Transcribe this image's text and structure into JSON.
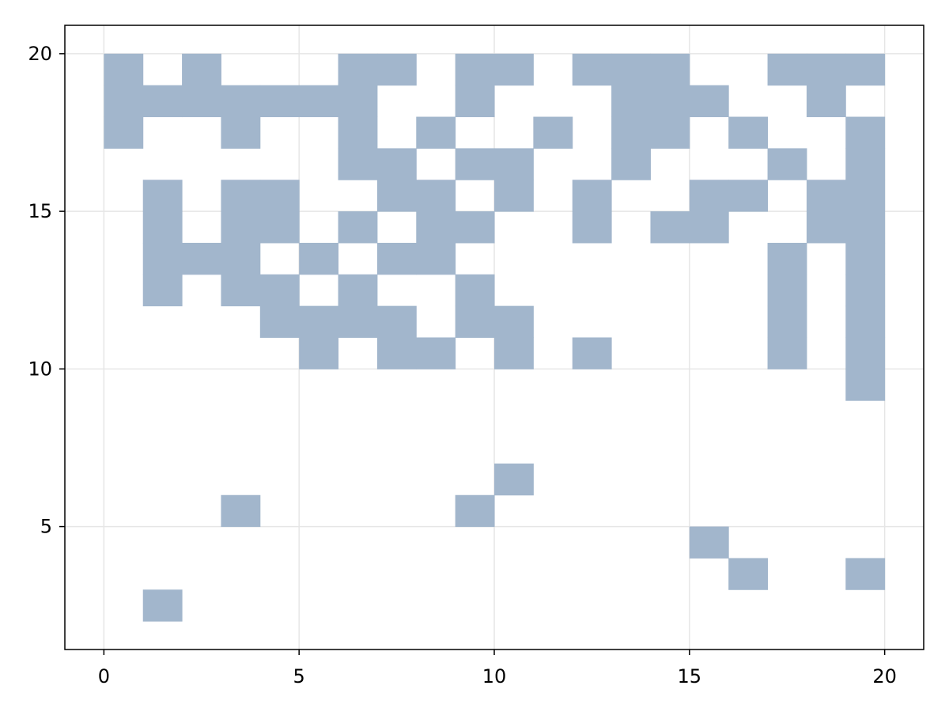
{
  "chart_data": {
    "type": "heatmap",
    "title": "",
    "xlabel": "",
    "ylabel": "",
    "xlim": [
      -1,
      21
    ],
    "ylim": [
      1.1,
      20.9
    ],
    "grid": true,
    "xticks": [
      0,
      5,
      10,
      15,
      20
    ],
    "yticks": [
      5,
      10,
      15,
      20
    ],
    "xtick_labels": [
      "0",
      "5",
      "10",
      "15",
      "20"
    ],
    "ytick_labels": [
      "5",
      "10",
      "15",
      "20"
    ],
    "cell_color": "#a2b6cc",
    "grid_color": "#e6e6e6",
    "cells": [
      [
        0,
        20
      ],
      [
        2,
        20
      ],
      [
        6,
        20
      ],
      [
        7,
        20
      ],
      [
        9,
        20
      ],
      [
        10,
        20
      ],
      [
        12,
        20
      ],
      [
        13,
        20
      ],
      [
        14,
        20
      ],
      [
        17,
        20
      ],
      [
        18,
        20
      ],
      [
        19,
        20
      ],
      [
        0,
        19
      ],
      [
        1,
        19
      ],
      [
        2,
        19
      ],
      [
        3,
        19
      ],
      [
        4,
        19
      ],
      [
        5,
        19
      ],
      [
        6,
        19
      ],
      [
        9,
        19
      ],
      [
        13,
        19
      ],
      [
        14,
        19
      ],
      [
        15,
        19
      ],
      [
        18,
        19
      ],
      [
        0,
        18
      ],
      [
        3,
        18
      ],
      [
        6,
        18
      ],
      [
        8,
        18
      ],
      [
        11,
        18
      ],
      [
        13,
        18
      ],
      [
        14,
        18
      ],
      [
        16,
        18
      ],
      [
        19,
        18
      ],
      [
        6,
        17
      ],
      [
        7,
        17
      ],
      [
        9,
        17
      ],
      [
        10,
        17
      ],
      [
        13,
        17
      ],
      [
        17,
        17
      ],
      [
        19,
        17
      ],
      [
        1,
        16
      ],
      [
        3,
        16
      ],
      [
        4,
        16
      ],
      [
        7,
        16
      ],
      [
        8,
        16
      ],
      [
        10,
        16
      ],
      [
        12,
        16
      ],
      [
        15,
        16
      ],
      [
        16,
        16
      ],
      [
        18,
        16
      ],
      [
        19,
        16
      ],
      [
        1,
        15
      ],
      [
        3,
        15
      ],
      [
        4,
        15
      ],
      [
        6,
        15
      ],
      [
        8,
        15
      ],
      [
        9,
        15
      ],
      [
        12,
        15
      ],
      [
        14,
        15
      ],
      [
        15,
        15
      ],
      [
        18,
        15
      ],
      [
        19,
        15
      ],
      [
        1,
        14
      ],
      [
        2,
        14
      ],
      [
        3,
        14
      ],
      [
        5,
        14
      ],
      [
        7,
        14
      ],
      [
        8,
        14
      ],
      [
        17,
        14
      ],
      [
        19,
        14
      ],
      [
        1,
        13
      ],
      [
        3,
        13
      ],
      [
        4,
        13
      ],
      [
        6,
        13
      ],
      [
        9,
        13
      ],
      [
        17,
        13
      ],
      [
        19,
        13
      ],
      [
        4,
        12
      ],
      [
        5,
        12
      ],
      [
        6,
        12
      ],
      [
        7,
        12
      ],
      [
        9,
        12
      ],
      [
        10,
        12
      ],
      [
        17,
        12
      ],
      [
        19,
        12
      ],
      [
        5,
        11
      ],
      [
        7,
        11
      ],
      [
        8,
        11
      ],
      [
        10,
        11
      ],
      [
        12,
        11
      ],
      [
        17,
        11
      ],
      [
        19,
        11
      ],
      [
        19,
        10
      ],
      [
        10,
        7
      ],
      [
        3,
        6
      ],
      [
        9,
        6
      ],
      [
        15,
        5
      ],
      [
        16,
        4
      ],
      [
        19,
        4
      ],
      [
        1,
        3
      ]
    ]
  }
}
